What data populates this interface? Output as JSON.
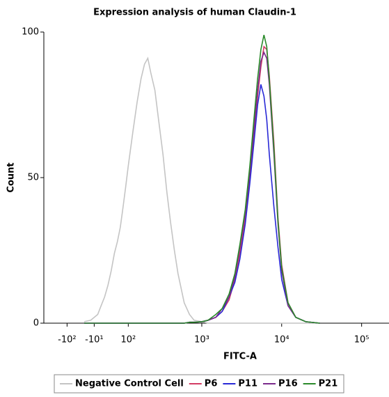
{
  "chart_data": {
    "type": "line",
    "title": "Expression analysis of human Claudin-1",
    "xlabel": "FITC-A",
    "ylabel": "Count",
    "xscale": "biexponential",
    "xlim": [
      -225,
      220000
    ],
    "xticks": [
      {
        "value": -100,
        "label": "-10²"
      },
      {
        "value": -10,
        "label": "-10¹"
      },
      {
        "value": 100,
        "label": "10²"
      },
      {
        "value": 1000,
        "label": "10³"
      },
      {
        "value": 10000,
        "label": "10⁴"
      },
      {
        "value": 100000,
        "label": "10⁵"
      }
    ],
    "ylim": [
      0,
      100
    ],
    "yticks": [
      0,
      50,
      100
    ],
    "legend": "bottom",
    "x": [
      -40,
      -20,
      0,
      10,
      20,
      30,
      40,
      50,
      60,
      70,
      80,
      90,
      100,
      120,
      140,
      160,
      180,
      200,
      220,
      250,
      280,
      320,
      360,
      400,
      450,
      500,
      600,
      700,
      800,
      1000,
      1200,
      1500,
      1800,
      2200,
      2600,
      3000,
      3500,
      4000,
      4500,
      5000,
      5500,
      6000,
      6500,
      7000,
      8000,
      9000,
      10000,
      12000,
      15000,
      20000,
      30000
    ],
    "series": [
      {
        "name": "Negative Control Cell",
        "color": "#c4c4c4",
        "values": [
          0.5,
          1,
          3,
          6,
          9,
          13,
          18,
          24,
          28,
          33,
          40,
          47,
          54,
          66,
          76,
          84,
          89,
          91,
          86,
          80,
          70,
          58,
          45,
          35,
          25,
          17,
          7,
          3,
          1,
          0.5,
          0,
          0,
          0,
          0,
          0,
          0,
          0,
          0,
          0,
          0,
          0,
          0,
          0,
          0,
          0,
          0,
          0,
          0,
          0,
          0,
          0
        ]
      },
      {
        "name": "P6",
        "color": "#d23c64",
        "values": [
          0,
          0,
          0,
          0,
          0,
          0,
          0,
          0,
          0,
          0,
          0,
          0,
          0,
          0,
          0,
          0,
          0,
          0,
          0,
          0,
          0,
          0,
          0,
          0,
          0,
          0,
          0,
          0.3,
          0.3,
          0.5,
          1,
          2,
          4,
          8,
          15,
          24,
          36,
          50,
          65,
          78,
          88,
          95,
          94,
          85,
          62,
          36,
          20,
          7,
          2,
          0.5,
          0
        ]
      },
      {
        "name": "P11",
        "color": "#2828d6",
        "values": [
          0,
          0,
          0,
          0,
          0,
          0,
          0,
          0,
          0,
          0,
          0,
          0,
          0,
          0,
          0,
          0,
          0,
          0,
          0,
          0,
          0,
          0,
          0,
          0,
          0,
          0,
          0,
          0.3,
          0.3,
          0.5,
          1,
          2,
          4,
          9,
          14,
          22,
          34,
          48,
          62,
          75,
          82,
          78,
          70,
          58,
          40,
          26,
          15,
          6,
          2,
          0.5,
          0
        ]
      },
      {
        "name": "P16",
        "color": "#7a2a8c",
        "values": [
          0,
          0,
          0,
          0,
          0,
          0,
          0,
          0,
          0,
          0,
          0,
          0,
          0,
          0,
          0,
          0,
          0,
          0,
          0,
          0,
          0,
          0,
          0,
          0,
          0,
          0,
          0,
          0.3,
          0.3,
          0.5,
          1,
          2,
          5,
          9,
          16,
          26,
          38,
          52,
          67,
          80,
          90,
          93,
          91,
          82,
          58,
          34,
          18,
          6,
          2,
          0.5,
          0
        ]
      },
      {
        "name": "P21",
        "color": "#2a8a2a",
        "values": [
          0,
          0,
          0,
          0,
          0,
          0,
          0,
          0,
          0,
          0,
          0,
          0,
          0,
          0,
          0,
          0,
          0,
          0,
          0,
          0,
          0,
          0,
          0,
          0,
          0,
          0,
          0,
          0.3,
          0.3,
          0.5,
          1,
          3,
          5,
          10,
          17,
          27,
          39,
          54,
          70,
          84,
          94,
          99,
          95,
          84,
          60,
          35,
          19,
          7,
          2,
          0.5,
          0
        ]
      }
    ]
  }
}
